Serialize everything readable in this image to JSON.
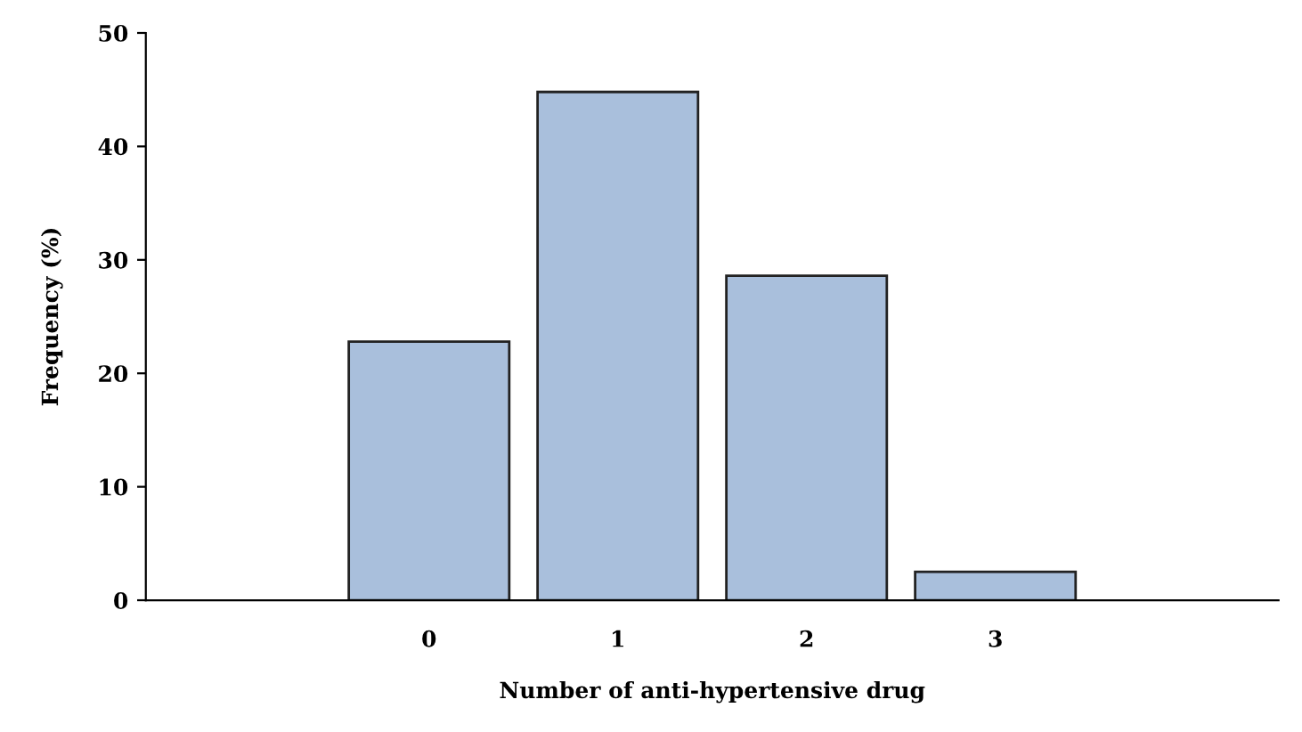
{
  "chart_data": {
    "type": "bar",
    "xlabel": "Number of anti-hypertensive drug",
    "ylabel": "Frequency (%)",
    "categories": [
      null,
      "0",
      "1",
      "2",
      "3",
      null
    ],
    "values": [
      null,
      22.8,
      44.8,
      28.6,
      2.5,
      null
    ],
    "color": "#a9bfdc",
    "ylim": [
      0,
      50
    ],
    "yticks": [
      0,
      10,
      20,
      30,
      40,
      50
    ],
    "grid": false
  }
}
